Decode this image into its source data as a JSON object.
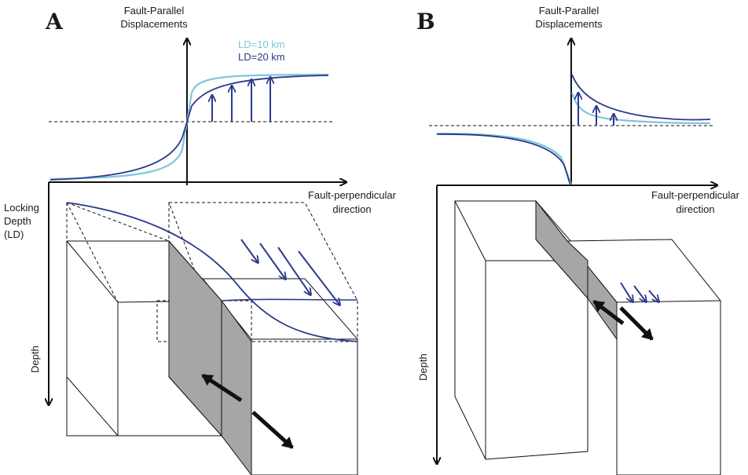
{
  "panel_a": {
    "letter": "A",
    "y_axis_label": [
      "Fault-Parallel",
      "Displacements"
    ],
    "x_axis_label": [
      "Fault-perpendicular",
      "direction"
    ],
    "depth_label": "Depth",
    "locking_depth_label": [
      "Locking",
      "Depth",
      "(LD)"
    ],
    "legend": [
      {
        "text": "LD=10 km",
        "color": "#7fc6dc"
      },
      {
        "text": "LD=20 km",
        "color": "#2b3a8c"
      }
    ]
  },
  "panel_b": {
    "letter": "B",
    "y_axis_label": [
      "Fault-Parallel",
      "Displacements"
    ],
    "x_axis_label": [
      "Fault-perpendicular",
      "direction"
    ],
    "depth_label": "Depth"
  },
  "colors": {
    "curve_ld10": "#7fc6dc",
    "curve_ld20": "#2b3a8c",
    "arrow": "#2b3a8c",
    "fault_plane": "#a6a6a6",
    "axis": "#111111"
  }
}
